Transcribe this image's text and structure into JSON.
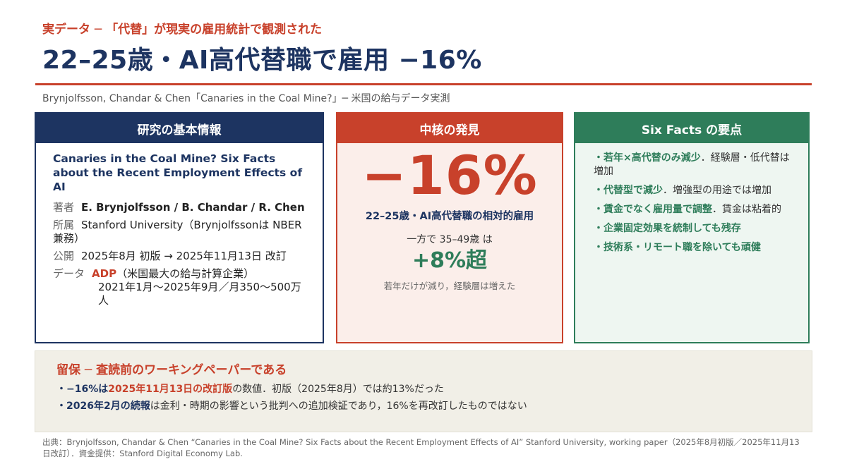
{
  "header": {
    "kicker": "実データ ─ 「代替」が現実の雇用統計で観測された",
    "title": "22–25歳・AI高代替職で雇用 −16%",
    "subtitle": "Brynjolfsson, Chandar & Chen「Canaries in the Coal Mine?」─ 米国の給与データ実測"
  },
  "info_card": {
    "heading": "研究の基本情報",
    "paper_title": "Canaries in the Coal Mine? Six Facts about the Recent Employment Effects of AI",
    "authors_key": "著者",
    "authors_val": "E. Brynjolfsson / B. Chandar / R. Chen",
    "affil_key": "所属",
    "affil_val": "Stanford University（Brynjolfssonは NBER兼務）",
    "pub_key": "公開",
    "pub_val": "2025年8月 初版 → 2025年11月13日 改訂",
    "data_key": "データ",
    "data_name": "ADP",
    "data_desc": "（米国最大の給与計算企業）",
    "data_range": "2021年1月～2025年9月／月350～500万人"
  },
  "core_card": {
    "heading": "中核の発見",
    "big_value": "−16%",
    "big_desc": "22–25歳・AI高代替職の相対的雇用",
    "compare_line": "一方で 35–49歳 は",
    "compare_value": "+8%超",
    "note": "若年だけが減り，経験層は増えた"
  },
  "facts_card": {
    "heading": "Six Facts の要点",
    "items": [
      {
        "bold": "若年×高代替のみ減少",
        "rest": "．経験層・低代替は増加"
      },
      {
        "bold": "代替型で減少",
        "rest": "．増強型の用途では増加"
      },
      {
        "bold": "賃金でなく雇用量で調整",
        "rest": "．賃金は粘着的"
      },
      {
        "bold": "企業固定効果を統制しても残存",
        "rest": ""
      },
      {
        "bold": "技術系・リモート職を除いても頑健",
        "rest": ""
      }
    ]
  },
  "caveat": {
    "title": "留保 ─ 査読前のワーキングペーパーである",
    "item1_bold": "−16%は",
    "item1_red": "2025年11月13日の改訂版",
    "item1_rest": "の数値．初版（2025年8月）では約13%だった",
    "item2_bold": "2026年2月の続報",
    "item2_rest": "は金利・時期の影響という批判への追加検証であり，16%を再改訂したものではない"
  },
  "source": "出典：Brynjolfsson, Chandar & Chen “Canaries in the Coal Mine? Six Facts about the Recent Employment Effects of AI” Stanford University, working paper（2025年8月初版／2025年11月13日改訂）．資金提供：Stanford Digital Economy Lab.",
  "colors": {
    "navy": "#1d3461",
    "red": "#c8412b",
    "green": "#2e7d5a"
  }
}
